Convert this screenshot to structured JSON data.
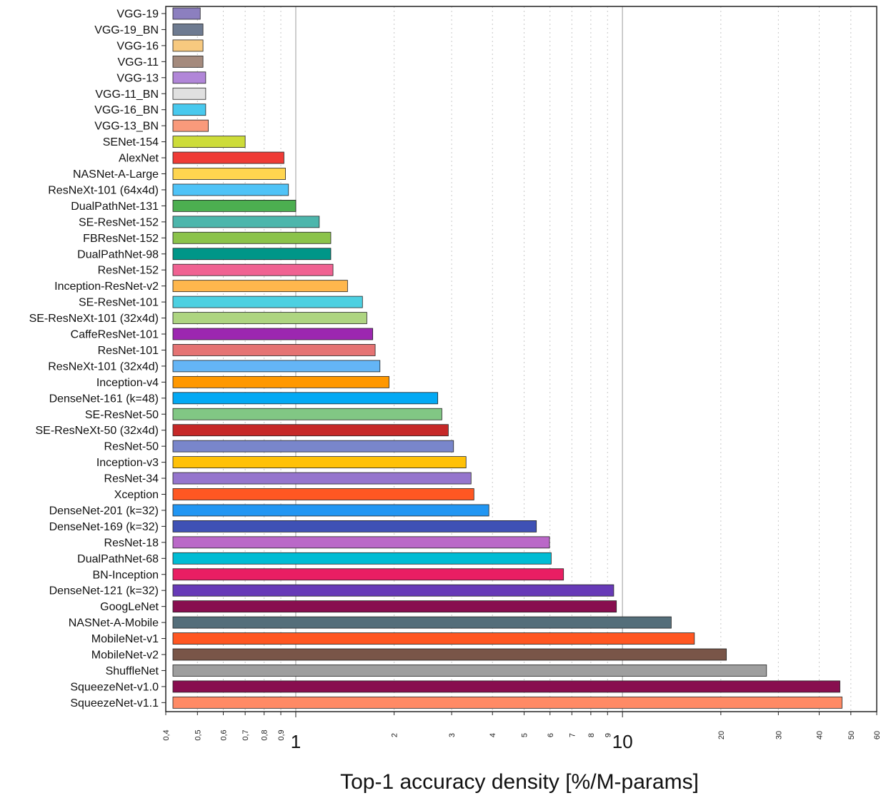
{
  "chart_data": {
    "type": "bar",
    "orientation": "horizontal",
    "xscale": "log",
    "xlim": [
      0.4,
      60
    ],
    "xlabel": "Top-1 accuracy density [%/M-params]",
    "ylabel": "",
    "title": "",
    "grid": "vertical major (solid) and minor (dotted)",
    "x_ticks": [
      0.4,
      0.5,
      0.6,
      0.7,
      0.8,
      0.9,
      1,
      2,
      3,
      4,
      5,
      6,
      7,
      8,
      9,
      10,
      20,
      30,
      40,
      50,
      60
    ],
    "x_tick_labels": [
      "0,4",
      "0,5",
      "0,6",
      "0,7",
      "0,8",
      "0,9",
      "1",
      "2",
      "3",
      "4",
      "5",
      "6",
      "7",
      "8",
      "9",
      "10",
      "20",
      "30",
      "40",
      "50",
      "60"
    ],
    "categories": [
      "VGG-19",
      "VGG-19_BN",
      "VGG-16",
      "VGG-11",
      "VGG-13",
      "VGG-11_BN",
      "VGG-16_BN",
      "VGG-13_BN",
      "SENet-154",
      "AlexNet",
      "NASNet-A-Large",
      "ResNeXt-101 (64x4d)",
      "DualPathNet-131",
      "SE-ResNet-152",
      "FBResNet-152",
      "DualPathNet-98",
      "ResNet-152",
      "Inception-ResNet-v2",
      "SE-ResNet-101",
      "SE-ResNeXt-101 (32x4d)",
      "CaffeResNet-101",
      "ResNet-101",
      "ResNeXt-101 (32x4d)",
      "Inception-v4",
      "DenseNet-161 (k=48)",
      "SE-ResNet-50",
      "SE-ResNeXt-50 (32x4d)",
      "ResNet-50",
      "Inception-v3",
      "ResNet-34",
      "Xception",
      "DenseNet-201 (k=32)",
      "DenseNet-169 (k=32)",
      "ResNet-18",
      "DualPathNet-68",
      "BN-Inception",
      "DenseNet-121 (k=32)",
      "GoogLeNet",
      "NASNet-A-Mobile",
      "MobileNet-v1",
      "MobileNet-v2",
      "ShuffleNet",
      "SqueezeNet-v1.0",
      "SqueezeNet-v1.1"
    ],
    "values": [
      0.51,
      0.52,
      0.52,
      0.52,
      0.53,
      0.53,
      0.53,
      0.54,
      0.7,
      0.92,
      0.93,
      0.95,
      1.0,
      1.18,
      1.28,
      1.28,
      1.3,
      1.44,
      1.6,
      1.65,
      1.72,
      1.75,
      1.81,
      1.93,
      2.72,
      2.8,
      2.93,
      3.04,
      3.32,
      3.44,
      3.51,
      3.9,
      5.45,
      5.98,
      6.05,
      6.6,
      9.4,
      9.58,
      14.1,
      16.6,
      20.8,
      27.6,
      46.3,
      47.0
    ],
    "colors": [
      "#8c7fbf",
      "#6e7b91",
      "#f7c97f",
      "#a48a7d",
      "#b186d8",
      "#e0e0e0",
      "#48c9ee",
      "#f99a7b",
      "#cddc39",
      "#ef3b36",
      "#ffd54f",
      "#4fc3f7",
      "#4caf50",
      "#4db6ac",
      "#8bc34a",
      "#009688",
      "#f06292",
      "#ffb74d",
      "#4dd0e1",
      "#aed581",
      "#9c27b0",
      "#e57373",
      "#64b5f6",
      "#ff9800",
      "#03a9f4",
      "#81c784",
      "#c62828",
      "#7986cb",
      "#ffc107",
      "#9575cd",
      "#ff5722",
      "#2196f3",
      "#3f51b5",
      "#ba68c8",
      "#00bcd4",
      "#e91e63",
      "#673ab7",
      "#880e4f",
      "#546e7a",
      "#ff5722",
      "#795548",
      "#9e9e9e",
      "#880e4f",
      "#ff8a65"
    ]
  }
}
